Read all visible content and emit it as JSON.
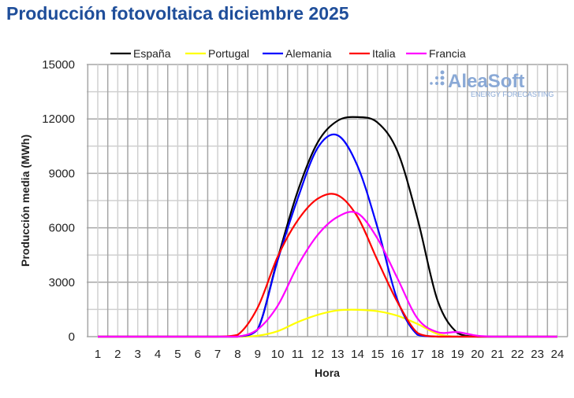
{
  "chart_data": {
    "type": "line",
    "title": "Producción fotovoltaica diciembre 2025",
    "xlabel": "Hora",
    "ylabel": "Producción media (MWh)",
    "ylim": [
      0,
      15000
    ],
    "yticks": [
      0,
      3000,
      6000,
      9000,
      12000,
      15000
    ],
    "x": [
      1,
      2,
      3,
      4,
      5,
      6,
      7,
      8,
      9,
      10,
      11,
      12,
      13,
      14,
      15,
      16,
      17,
      18,
      19,
      20,
      21,
      22,
      23,
      24
    ],
    "grid": true,
    "legend_position": "top",
    "series": [
      {
        "name": "España",
        "color": "#000000",
        "values": [
          0,
          0,
          0,
          0,
          0,
          0,
          0,
          0,
          400,
          4300,
          8000,
          10700,
          11900,
          12100,
          11800,
          10200,
          6500,
          2000,
          200,
          0,
          0,
          0,
          0,
          0
        ]
      },
      {
        "name": "Portugal",
        "color": "#ffff00",
        "values": [
          0,
          0,
          0,
          0,
          0,
          0,
          0,
          0,
          50,
          300,
          800,
          1200,
          1450,
          1480,
          1400,
          1150,
          700,
          150,
          0,
          0,
          0,
          0,
          0,
          0
        ]
      },
      {
        "name": "Alemania",
        "color": "#0000ff",
        "values": [
          0,
          0,
          0,
          0,
          0,
          0,
          0,
          0,
          400,
          4200,
          7600,
          10400,
          11100,
          9400,
          6000,
          2000,
          100,
          0,
          0,
          0,
          0,
          0,
          0,
          0
        ]
      },
      {
        "name": "Italia",
        "color": "#ff0000",
        "values": [
          0,
          0,
          0,
          0,
          0,
          0,
          0,
          100,
          1600,
          4400,
          6400,
          7600,
          7800,
          6600,
          4200,
          1900,
          200,
          0,
          0,
          0,
          0,
          0,
          0,
          0
        ]
      },
      {
        "name": "Francia",
        "color": "#ff00ff",
        "values": [
          0,
          0,
          0,
          0,
          0,
          0,
          0,
          0,
          400,
          1700,
          3900,
          5600,
          6600,
          6800,
          5400,
          3200,
          1000,
          250,
          250,
          50,
          0,
          0,
          0,
          0
        ]
      }
    ]
  },
  "logo": {
    "name": "AleaSoft",
    "tagline": "ENERGY FORECASTING"
  }
}
